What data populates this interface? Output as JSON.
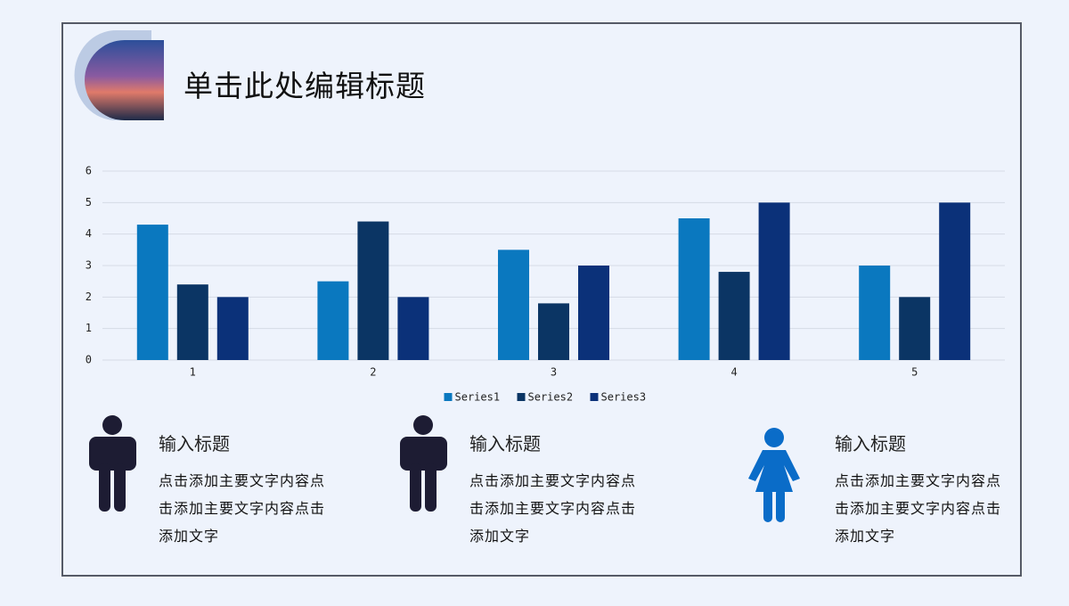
{
  "slide_title": "单击此处编辑标题",
  "chart_data": {
    "type": "bar",
    "categories": [
      "1",
      "2",
      "3",
      "4",
      "5"
    ],
    "series": [
      {
        "name": "Series1",
        "color": "#0a78bf",
        "values": [
          4.3,
          2.5,
          3.5,
          4.5,
          3
        ]
      },
      {
        "name": "Series2",
        "color": "#0b3564",
        "values": [
          2.4,
          4.4,
          1.8,
          2.8,
          2
        ]
      },
      {
        "name": "Series3",
        "color": "#0b3179",
        "values": [
          2,
          2,
          3,
          5,
          5
        ]
      }
    ],
    "ylim": [
      0,
      6
    ],
    "yticks": [
      0,
      1,
      2,
      3,
      4,
      5,
      6
    ],
    "grid": true,
    "legend": "bottom"
  },
  "cards": [
    {
      "title": "输入标题",
      "body": "点击添加主要文字内容点击添加主要文字内容点击添加文字"
    },
    {
      "title": "输入标题",
      "body": "点击添加主要文字内容点击添加主要文字内容点击添加文字"
    },
    {
      "title": "输入标题",
      "body": "点击添加主要文字内容点击添加主要文字内容点击添加文字"
    }
  ]
}
